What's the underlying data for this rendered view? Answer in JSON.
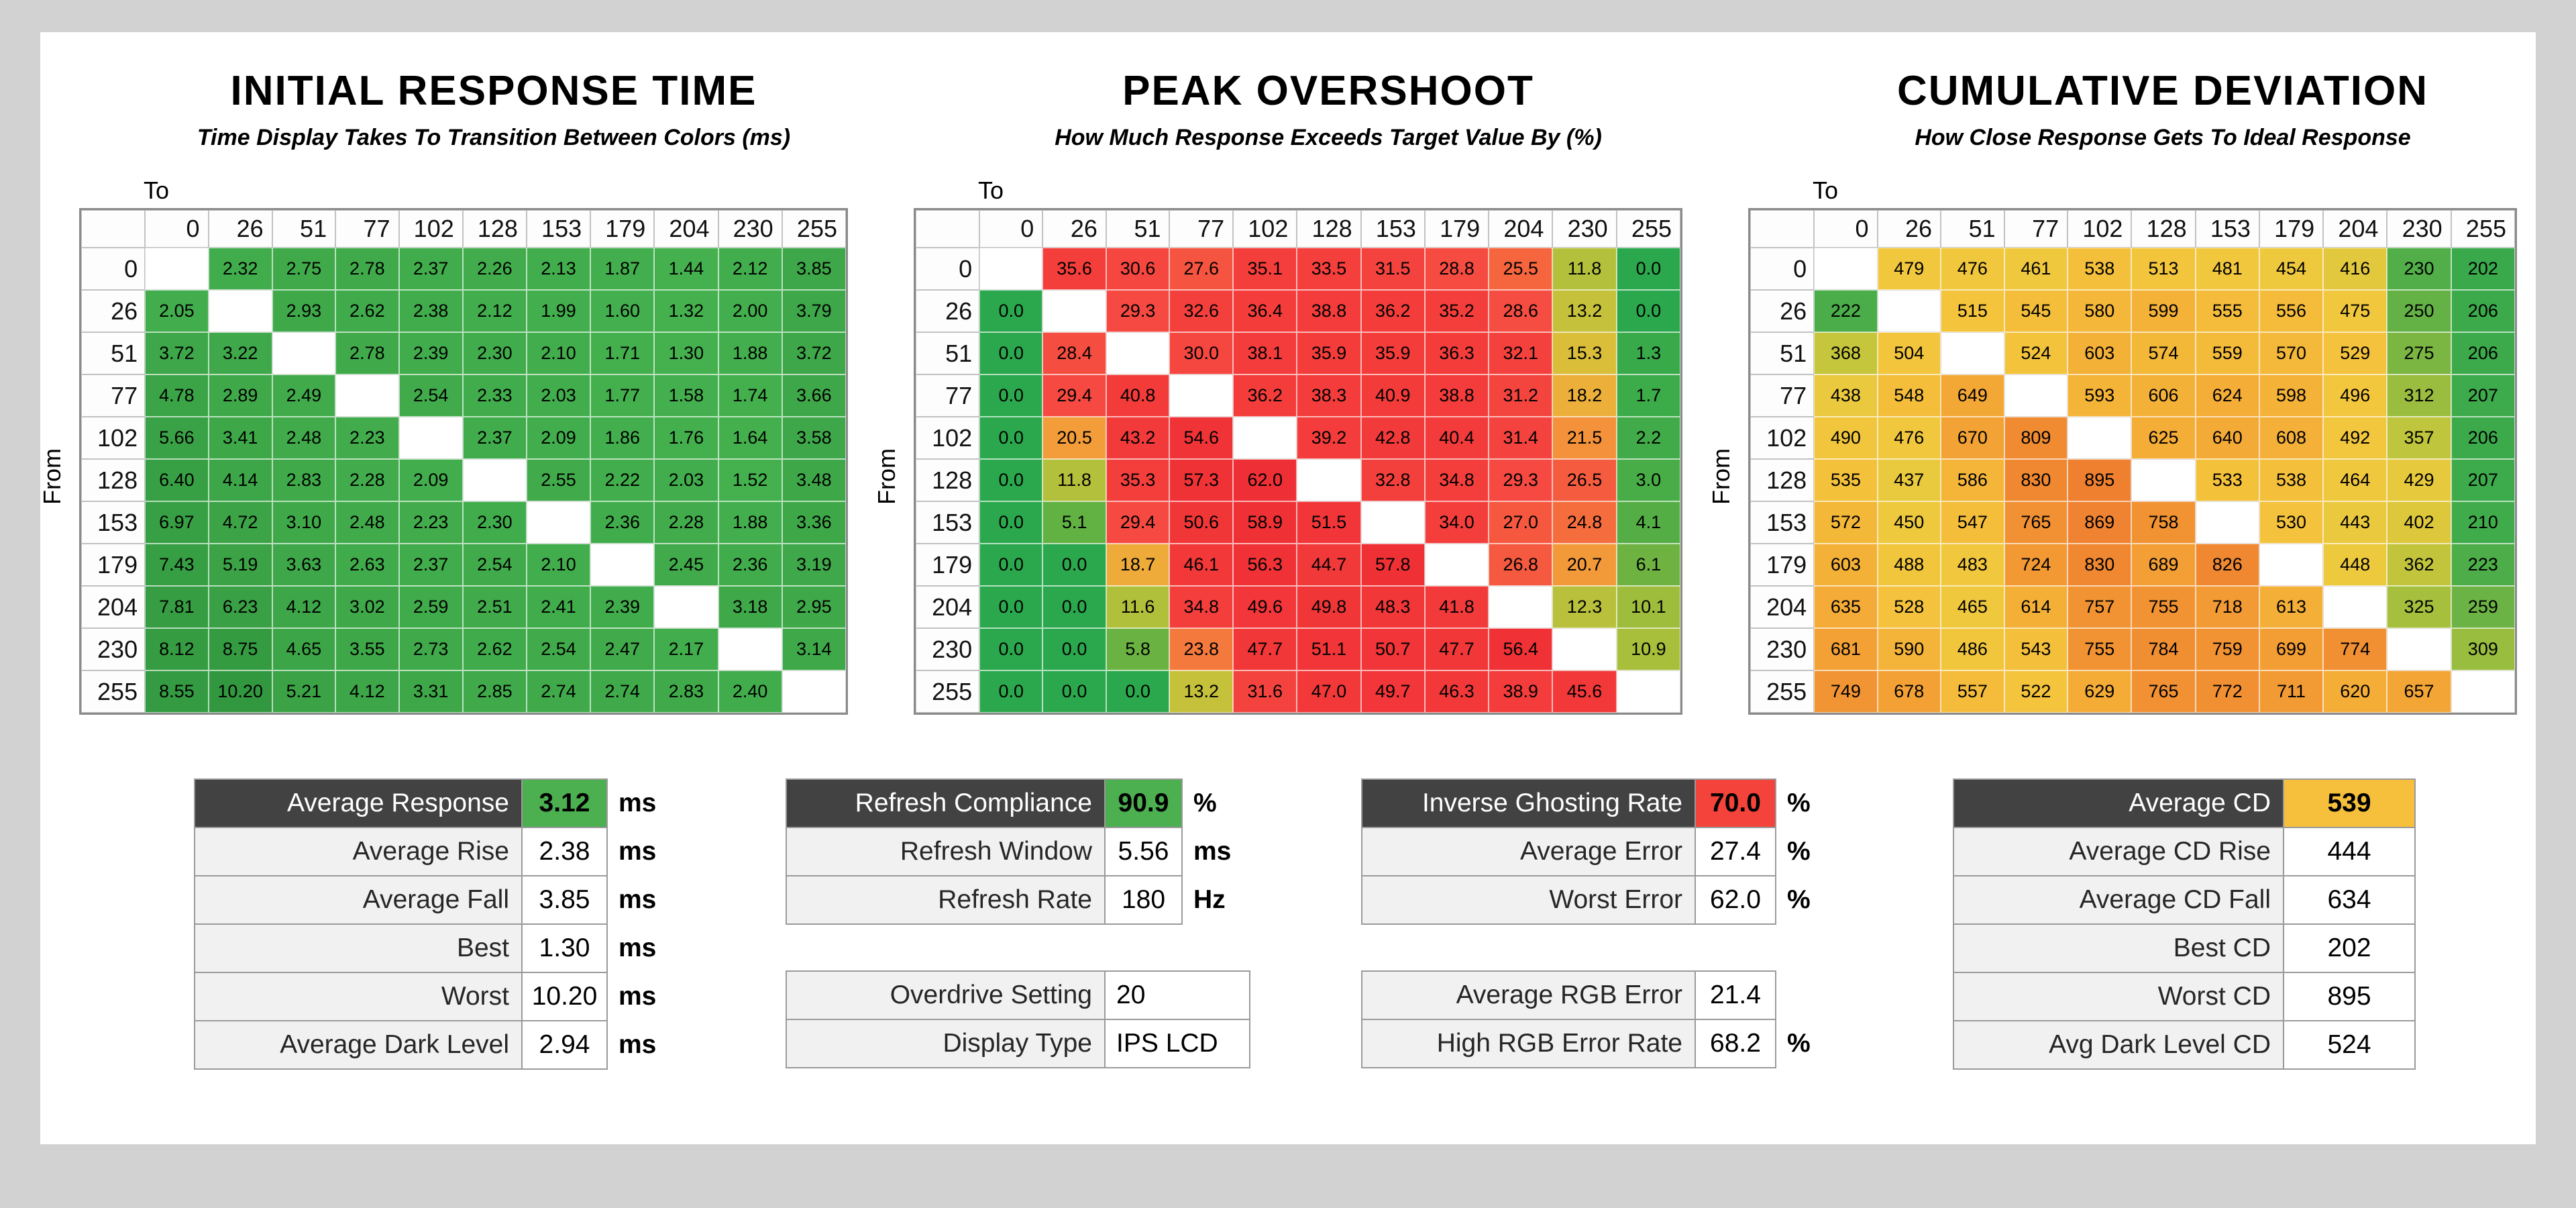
{
  "colors": {
    "page_bg": "#d2d2d2",
    "sheet_bg": "#ffffff",
    "dark_header_bg": "#424242",
    "good_green": "#4caf50",
    "bad_red": "#f4433a",
    "warn_amber": "#f7c03c",
    "label_bg": "#f1f1f1",
    "table_border": "#9a9a9a"
  },
  "scales": {
    "response_ms": [
      [
        1.0,
        "#46b24f"
      ],
      [
        3.0,
        "#3fa94a"
      ],
      [
        6.0,
        "#39a145"
      ],
      [
        10.5,
        "#31973f"
      ]
    ],
    "overshoot_pct": [
      [
        0,
        "#2ba84d"
      ],
      [
        4,
        "#53ae45"
      ],
      [
        8,
        "#86b83f"
      ],
      [
        11,
        "#a9bf3b"
      ],
      [
        14,
        "#cfc23a"
      ],
      [
        17,
        "#e8b83a"
      ],
      [
        20,
        "#f2a13a"
      ],
      [
        23,
        "#f4823c"
      ],
      [
        26,
        "#f55f3e"
      ],
      [
        29,
        "#f54a41"
      ],
      [
        33,
        "#f43f3c"
      ],
      [
        48,
        "#f23739"
      ],
      [
        62,
        "#ee2f35"
      ]
    ],
    "cumulative_dev": [
      [
        200,
        "#37a94c"
      ],
      [
        240,
        "#5bb047"
      ],
      [
        280,
        "#7fb742"
      ],
      [
        320,
        "#a2bf3e"
      ],
      [
        360,
        "#c1c53c"
      ],
      [
        400,
        "#dcc83c"
      ],
      [
        450,
        "#eec93e"
      ],
      [
        520,
        "#f4c43c"
      ],
      [
        600,
        "#f4b238"
      ],
      [
        680,
        "#f3a135"
      ],
      [
        760,
        "#f19233"
      ],
      [
        840,
        "#ef8631"
      ],
      [
        900,
        "#ee7f30"
      ]
    ]
  },
  "chart_data": [
    {
      "type": "heatmap",
      "title": "INITIAL RESPONSE TIME",
      "subtitle": "Time Display Takes To Transition Between Colors (ms)",
      "axis_to": "To",
      "axis_from": "From",
      "levels": [
        "0",
        "26",
        "51",
        "77",
        "102",
        "128",
        "153",
        "179",
        "204",
        "230",
        "255"
      ],
      "scale": "response_ms",
      "rows": [
        [
          null,
          "2.32",
          "2.75",
          "2.78",
          "2.37",
          "2.26",
          "2.13",
          "1.87",
          "1.44",
          "2.12",
          "3.85"
        ],
        [
          "2.05",
          null,
          "2.93",
          "2.62",
          "2.38",
          "2.12",
          "1.99",
          "1.60",
          "1.32",
          "2.00",
          "3.79"
        ],
        [
          "3.72",
          "3.22",
          null,
          "2.78",
          "2.39",
          "2.30",
          "2.10",
          "1.71",
          "1.30",
          "1.88",
          "3.72"
        ],
        [
          "4.78",
          "2.89",
          "2.49",
          null,
          "2.54",
          "2.33",
          "2.03",
          "1.77",
          "1.58",
          "1.74",
          "3.66"
        ],
        [
          "5.66",
          "3.41",
          "2.48",
          "2.23",
          null,
          "2.37",
          "2.09",
          "1.86",
          "1.76",
          "1.64",
          "3.58"
        ],
        [
          "6.40",
          "4.14",
          "2.83",
          "2.28",
          "2.09",
          null,
          "2.55",
          "2.22",
          "2.03",
          "1.52",
          "3.48"
        ],
        [
          "6.97",
          "4.72",
          "3.10",
          "2.48",
          "2.23",
          "2.30",
          null,
          "2.36",
          "2.28",
          "1.88",
          "3.36"
        ],
        [
          "7.43",
          "5.19",
          "3.63",
          "2.63",
          "2.37",
          "2.54",
          "2.10",
          null,
          "2.45",
          "2.36",
          "3.19"
        ],
        [
          "7.81",
          "6.23",
          "4.12",
          "3.02",
          "2.59",
          "2.51",
          "2.41",
          "2.39",
          null,
          "3.18",
          "2.95"
        ],
        [
          "8.12",
          "8.75",
          "4.65",
          "3.55",
          "2.73",
          "2.62",
          "2.54",
          "2.47",
          "2.17",
          null,
          "3.14"
        ],
        [
          "8.55",
          "10.20",
          "5.21",
          "4.12",
          "3.31",
          "2.85",
          "2.74",
          "2.74",
          "2.83",
          "2.40",
          null
        ]
      ]
    },
    {
      "type": "heatmap",
      "title": "PEAK OVERSHOOT",
      "subtitle": "How Much Response Exceeds Target Value By (%)",
      "axis_to": "To",
      "axis_from": "From",
      "levels": [
        "0",
        "26",
        "51",
        "77",
        "102",
        "128",
        "153",
        "179",
        "204",
        "230",
        "255"
      ],
      "scale": "overshoot_pct",
      "rows": [
        [
          null,
          "35.6",
          "30.6",
          "27.6",
          "35.1",
          "33.5",
          "31.5",
          "28.8",
          "25.5",
          "11.8",
          "0.0"
        ],
        [
          "0.0",
          null,
          "29.3",
          "32.6",
          "36.4",
          "38.8",
          "36.2",
          "35.2",
          "28.6",
          "13.2",
          "0.0"
        ],
        [
          "0.0",
          "28.4",
          null,
          "30.0",
          "38.1",
          "35.9",
          "35.9",
          "36.3",
          "32.1",
          "15.3",
          "1.3"
        ],
        [
          "0.0",
          "29.4",
          "40.8",
          null,
          "36.2",
          "38.3",
          "40.9",
          "38.8",
          "31.2",
          "18.2",
          "1.7"
        ],
        [
          "0.0",
          "20.5",
          "43.2",
          "54.6",
          null,
          "39.2",
          "42.8",
          "40.4",
          "31.4",
          "21.5",
          "2.2"
        ],
        [
          "0.0",
          "11.8",
          "35.3",
          "57.3",
          "62.0",
          null,
          "32.8",
          "34.8",
          "29.3",
          "26.5",
          "3.0"
        ],
        [
          "0.0",
          "5.1",
          "29.4",
          "50.6",
          "58.9",
          "51.5",
          null,
          "34.0",
          "27.0",
          "24.8",
          "4.1"
        ],
        [
          "0.0",
          "0.0",
          "18.7",
          "46.1",
          "56.3",
          "44.7",
          "57.8",
          null,
          "26.8",
          "20.7",
          "6.1"
        ],
        [
          "0.0",
          "0.0",
          "11.6",
          "34.8",
          "49.6",
          "49.8",
          "48.3",
          "41.8",
          null,
          "12.3",
          "10.1"
        ],
        [
          "0.0",
          "0.0",
          "5.8",
          "23.8",
          "47.7",
          "51.1",
          "50.7",
          "47.7",
          "56.4",
          null,
          "10.9"
        ],
        [
          "0.0",
          "0.0",
          "0.0",
          "13.2",
          "31.6",
          "47.0",
          "49.7",
          "46.3",
          "38.9",
          "45.6",
          null
        ]
      ]
    },
    {
      "type": "heatmap",
      "title": "CUMULATIVE DEVIATION",
      "subtitle": "How Close Response Gets To Ideal Response",
      "axis_to": "To",
      "axis_from": "From",
      "levels": [
        "0",
        "26",
        "51",
        "77",
        "102",
        "128",
        "153",
        "179",
        "204",
        "230",
        "255"
      ],
      "scale": "cumulative_dev",
      "rows": [
        [
          null,
          "479",
          "476",
          "461",
          "538",
          "513",
          "481",
          "454",
          "416",
          "230",
          "202"
        ],
        [
          "222",
          null,
          "515",
          "545",
          "580",
          "599",
          "555",
          "556",
          "475",
          "250",
          "206"
        ],
        [
          "368",
          "504",
          null,
          "524",
          "603",
          "574",
          "559",
          "570",
          "529",
          "275",
          "206"
        ],
        [
          "438",
          "548",
          "649",
          null,
          "593",
          "606",
          "624",
          "598",
          "496",
          "312",
          "207"
        ],
        [
          "490",
          "476",
          "670",
          "809",
          null,
          "625",
          "640",
          "608",
          "492",
          "357",
          "206"
        ],
        [
          "535",
          "437",
          "586",
          "830",
          "895",
          null,
          "533",
          "538",
          "464",
          "429",
          "207"
        ],
        [
          "572",
          "450",
          "547",
          "765",
          "869",
          "758",
          null,
          "530",
          "443",
          "402",
          "210"
        ],
        [
          "603",
          "488",
          "483",
          "724",
          "830",
          "689",
          "826",
          null,
          "448",
          "362",
          "223"
        ],
        [
          "635",
          "528",
          "465",
          "614",
          "757",
          "755",
          "718",
          "613",
          null,
          "325",
          "259"
        ],
        [
          "681",
          "590",
          "486",
          "543",
          "755",
          "784",
          "759",
          "699",
          "774",
          null,
          "309"
        ],
        [
          "749",
          "678",
          "557",
          "522",
          "629",
          "765",
          "772",
          "711",
          "620",
          "657",
          null
        ]
      ]
    },
    {
      "type": "summary",
      "name": "response-summary",
      "groups": [
        [
          {
            "label": "Average Response",
            "value": "3.12",
            "unit": "ms",
            "dark": true,
            "value_bg": "#4caf50"
          },
          {
            "label": "Average Rise",
            "value": "2.38",
            "unit": "ms"
          },
          {
            "label": "Average Fall",
            "value": "3.85",
            "unit": "ms"
          },
          {
            "label": "Best",
            "value": "1.30",
            "unit": "ms"
          },
          {
            "label": "Worst",
            "value": "10.20",
            "unit": "ms"
          },
          {
            "label": "Average Dark Level",
            "value": "2.94",
            "unit": "ms"
          }
        ]
      ]
    },
    {
      "type": "summary",
      "name": "refresh-summary",
      "groups": [
        [
          {
            "label": "Refresh Compliance",
            "value": "90.9",
            "unit": "%",
            "dark": true,
            "value_bg": "#4caf50"
          },
          {
            "label": "Refresh Window",
            "value": "5.56",
            "unit": "ms"
          },
          {
            "label": "Refresh Rate",
            "value": "180",
            "unit": "Hz"
          }
        ],
        [
          {
            "label": "Overdrive Setting",
            "value": "20",
            "unit": ""
          },
          {
            "label": "Display Type",
            "value": "IPS LCD",
            "unit": ""
          }
        ]
      ]
    },
    {
      "type": "summary",
      "name": "ghosting-summary",
      "groups": [
        [
          {
            "label": "Inverse Ghosting Rate",
            "value": "70.0",
            "unit": "%",
            "dark": true,
            "value_bg": "#f4433a"
          },
          {
            "label": "Average Error",
            "value": "27.4",
            "unit": "%"
          },
          {
            "label": "Worst Error",
            "value": "62.0",
            "unit": "%"
          }
        ],
        [
          {
            "label": "Average RGB Error",
            "value": "21.4",
            "unit": ""
          },
          {
            "label": "High RGB Error Rate",
            "value": "68.2",
            "unit": "%"
          }
        ]
      ]
    },
    {
      "type": "summary",
      "name": "cumulative-summary",
      "groups": [
        [
          {
            "label": "Average CD",
            "value": "539",
            "unit": "",
            "dark": true,
            "value_bg": "#f7c03c"
          },
          {
            "label": "Average CD Rise",
            "value": "444",
            "unit": ""
          },
          {
            "label": "Average CD Fall",
            "value": "634",
            "unit": ""
          },
          {
            "label": "Best CD",
            "value": "202",
            "unit": ""
          },
          {
            "label": "Worst CD",
            "value": "895",
            "unit": ""
          },
          {
            "label": "Avg Dark Level CD",
            "value": "524",
            "unit": ""
          }
        ]
      ]
    }
  ]
}
